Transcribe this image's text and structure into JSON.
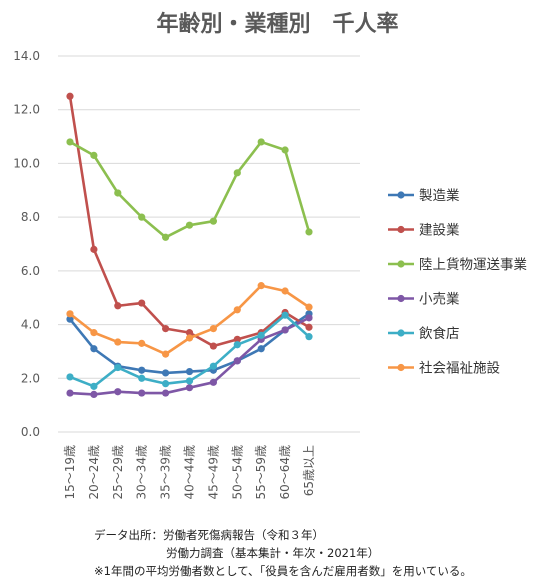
{
  "chart_data": {
    "type": "line",
    "title": "年齢別・業種別　千人率",
    "categories": [
      "15～19歳",
      "20～24歳",
      "25～29歳",
      "30～34歳",
      "35～39歳",
      "40～44歳",
      "45～49歳",
      "50～54歳",
      "55～59歳",
      "60～64歳",
      "65歳以上"
    ],
    "yticks": [
      "0.0",
      "2.0",
      "4.0",
      "6.0",
      "8.0",
      "10.0",
      "12.0",
      "14.0"
    ],
    "ylim": [
      0,
      14
    ],
    "grid": true,
    "legend_position": "right",
    "series": [
      {
        "name": "製造業",
        "color": "#3E78B5",
        "values": [
          4.2,
          3.1,
          2.45,
          2.3,
          2.2,
          2.25,
          2.3,
          2.65,
          3.1,
          3.8,
          4.4
        ]
      },
      {
        "name": "建設業",
        "color": "#C0504D",
        "values": [
          12.5,
          6.8,
          4.7,
          4.8,
          3.85,
          3.7,
          3.2,
          3.45,
          3.7,
          4.45,
          3.9
        ]
      },
      {
        "name": "陸上貨物運送事業",
        "color": "#8CBF4F",
        "values": [
          10.8,
          10.3,
          8.9,
          8.0,
          7.25,
          7.7,
          7.85,
          9.65,
          10.8,
          10.5,
          7.45
        ]
      },
      {
        "name": "小売業",
        "color": "#7E57A6",
        "values": [
          1.45,
          1.4,
          1.5,
          1.45,
          1.45,
          1.65,
          1.85,
          2.65,
          3.45,
          3.8,
          4.25
        ]
      },
      {
        "name": "飲食店",
        "color": "#3DAEC6",
        "values": [
          2.05,
          1.7,
          2.4,
          2.0,
          1.8,
          1.9,
          2.45,
          3.25,
          3.6,
          4.35,
          3.55
        ]
      },
      {
        "name": "社会福祉施設",
        "color": "#F79646",
        "values": [
          4.4,
          3.7,
          3.35,
          3.3,
          2.9,
          3.5,
          3.85,
          4.55,
          5.45,
          5.25,
          4.65
        ]
      }
    ]
  },
  "source": {
    "line1": "データ出所：労働者死傷病報告（令和３年）",
    "line2": "労働力調査（基本集計・年次・2021年）",
    "line3": "※1年間の平均労働者数として、「役員を含んだ雇用者数」を用いている。"
  },
  "colors": {
    "grid": "#D9D9D9",
    "axis_text": "#595959"
  }
}
